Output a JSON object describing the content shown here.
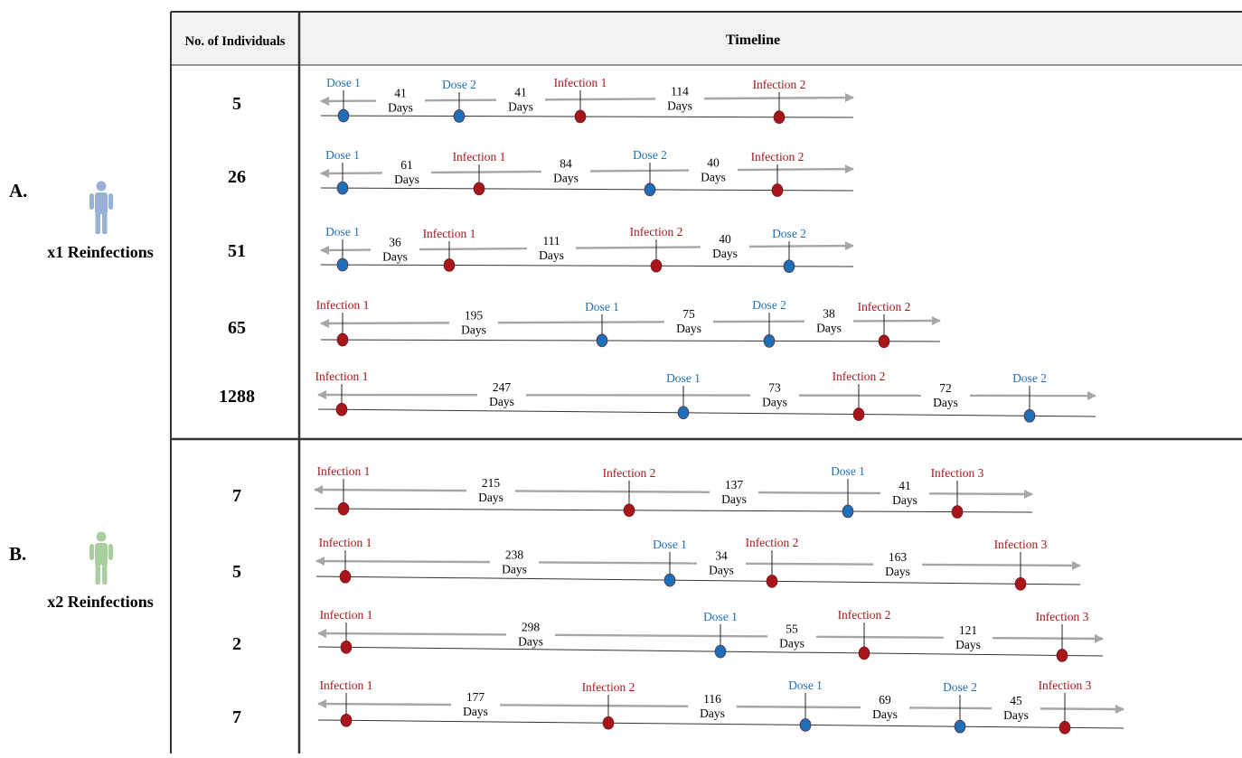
{
  "header": {
    "individuals": "No. of Individuals",
    "timeline": "Timeline"
  },
  "colors": {
    "dose": "#1f6fb8",
    "infection": "#a8161c",
    "arrow": "#a6a6a6",
    "grid": "#333333",
    "header_bg": "#f2f2f2"
  },
  "icons": {
    "a": "person-icon-blue",
    "b": "person-icon-green"
  },
  "groups": [
    {
      "letter": "A.",
      "label": "x1 Reinfections",
      "icon_color": "#97b2d6"
    },
    {
      "letter": "B.",
      "label": "x2 Reinfections",
      "icon_color": "#a9cfa0"
    }
  ],
  "rows": [
    {
      "group": 0,
      "count": "5",
      "events": [
        {
          "label": "Dose 1",
          "kind": "dose"
        },
        {
          "label": "Dose 2",
          "kind": "dose"
        },
        {
          "label": "Infection 1",
          "kind": "infection"
        },
        {
          "label": "Infection 2",
          "kind": "infection"
        }
      ],
      "intervals": [
        {
          "days": "41",
          "unit": "Days"
        },
        {
          "days": "41",
          "unit": "Days"
        },
        {
          "days": "114",
          "unit": "Days"
        }
      ]
    },
    {
      "group": 0,
      "count": "26",
      "events": [
        {
          "label": "Dose 1",
          "kind": "dose"
        },
        {
          "label": "Infection 1",
          "kind": "infection"
        },
        {
          "label": "Dose 2",
          "kind": "dose"
        },
        {
          "label": "Infection 2",
          "kind": "infection"
        }
      ],
      "intervals": [
        {
          "days": "61",
          "unit": "Days"
        },
        {
          "days": "84",
          "unit": "Days"
        },
        {
          "days": "40",
          "unit": "Days"
        }
      ]
    },
    {
      "group": 0,
      "count": "51",
      "events": [
        {
          "label": "Dose 1",
          "kind": "dose"
        },
        {
          "label": "Infection 1",
          "kind": "infection"
        },
        {
          "label": "Infection 2",
          "kind": "infection"
        },
        {
          "label": "Dose 2",
          "kind": "dose"
        }
      ],
      "intervals": [
        {
          "days": "36",
          "unit": "Days"
        },
        {
          "days": "111",
          "unit": "Days"
        },
        {
          "days": "40",
          "unit": "Days"
        }
      ]
    },
    {
      "group": 0,
      "count": "65",
      "events": [
        {
          "label": "Infection 1",
          "kind": "infection"
        },
        {
          "label": "Dose 1",
          "kind": "dose"
        },
        {
          "label": "Dose 2",
          "kind": "dose"
        },
        {
          "label": "Infection 2",
          "kind": "infection"
        }
      ],
      "intervals": [
        {
          "days": "195",
          "unit": "Days"
        },
        {
          "days": "75",
          "unit": "Days"
        },
        {
          "days": "38",
          "unit": "Days"
        }
      ]
    },
    {
      "group": 0,
      "count": "1288",
      "events": [
        {
          "label": "Infection 1",
          "kind": "infection"
        },
        {
          "label": "Dose 1",
          "kind": "dose"
        },
        {
          "label": "Infection 2",
          "kind": "infection"
        },
        {
          "label": "Dose 2",
          "kind": "dose"
        }
      ],
      "intervals": [
        {
          "days": "247",
          "unit": "Days"
        },
        {
          "days": "73",
          "unit": "Days"
        },
        {
          "days": "72",
          "unit": "Days"
        }
      ]
    },
    {
      "group": 1,
      "count": "7",
      "events": [
        {
          "label": "Infection 1",
          "kind": "infection"
        },
        {
          "label": "Infection 2",
          "kind": "infection"
        },
        {
          "label": "Dose 1",
          "kind": "dose"
        },
        {
          "label": "Infection 3",
          "kind": "infection"
        }
      ],
      "intervals": [
        {
          "days": "215",
          "unit": "Days"
        },
        {
          "days": "137",
          "unit": "Days"
        },
        {
          "days": "41",
          "unit": "Days"
        }
      ]
    },
    {
      "group": 1,
      "count": "5",
      "events": [
        {
          "label": "Infection 1",
          "kind": "infection"
        },
        {
          "label": "Dose 1",
          "kind": "dose"
        },
        {
          "label": "Infection 2",
          "kind": "infection"
        },
        {
          "label": "Infection 3",
          "kind": "infection"
        }
      ],
      "intervals": [
        {
          "days": "238",
          "unit": "Days"
        },
        {
          "days": "34",
          "unit": "Days"
        },
        {
          "days": "163",
          "unit": "Days"
        }
      ]
    },
    {
      "group": 1,
      "count": "2",
      "events": [
        {
          "label": "Infection 1",
          "kind": "infection"
        },
        {
          "label": "Dose 1",
          "kind": "dose"
        },
        {
          "label": "Infection 2",
          "kind": "infection"
        },
        {
          "label": "Infection 3",
          "kind": "infection"
        }
      ],
      "intervals": [
        {
          "days": "298",
          "unit": "Days"
        },
        {
          "days": "55",
          "unit": "Days"
        },
        {
          "days": "121",
          "unit": "Days"
        }
      ]
    },
    {
      "group": 1,
      "count": "7",
      "events": [
        {
          "label": "Infection 1",
          "kind": "infection"
        },
        {
          "label": "Infection 2",
          "kind": "infection"
        },
        {
          "label": "Dose 1",
          "kind": "dose"
        },
        {
          "label": "Dose 2",
          "kind": "dose"
        },
        {
          "label": "Infection 3",
          "kind": "infection"
        }
      ],
      "intervals": [
        {
          "days": "177",
          "unit": "Days"
        },
        {
          "days": "116",
          "unit": "Days"
        },
        {
          "days": "69",
          "unit": "Days"
        },
        {
          "days": "45",
          "unit": "Days"
        }
      ]
    }
  ]
}
